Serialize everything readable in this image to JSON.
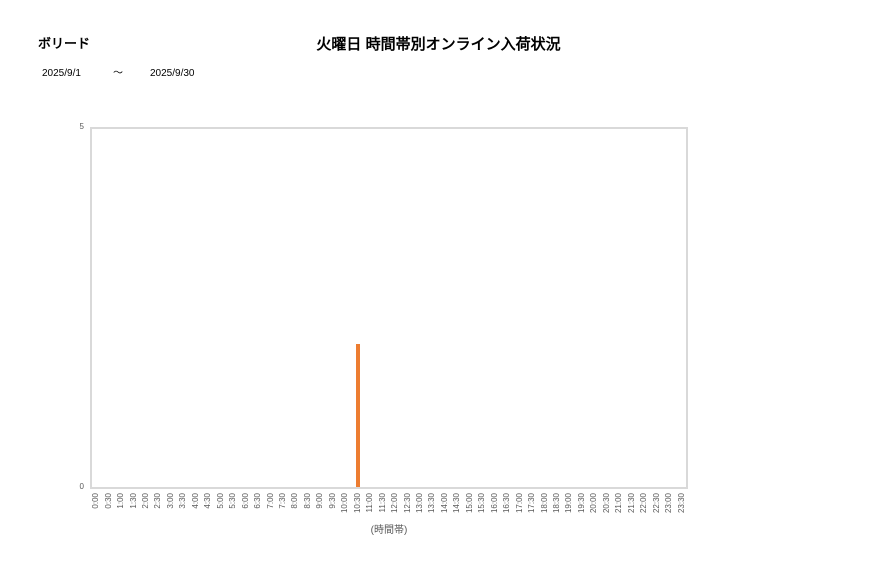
{
  "header": {
    "product_label": "ボリード",
    "title": "火曜日 時間帯別オンライン入荷状況",
    "date_from": "2025/9/1",
    "date_separator": "～",
    "date_to": "2025/9/30"
  },
  "chart_data": {
    "type": "bar",
    "title": "火曜日 時間帯別オンライン入荷状況",
    "xlabel": "(時間帯)",
    "ylabel": "",
    "ylim": [
      0,
      5
    ],
    "yticks": [
      "0",
      "5"
    ],
    "grid": false,
    "legend": false,
    "bar_color": "#ED7D31",
    "plot_border_color": "#D9D9D9",
    "categories": [
      "0:00",
      "0:30",
      "1:00",
      "1:30",
      "2:00",
      "2:30",
      "3:00",
      "3:30",
      "4:00",
      "4:30",
      "5:00",
      "5:30",
      "6:00",
      "6:30",
      "7:00",
      "7:30",
      "8:00",
      "8:30",
      "9:00",
      "9:30",
      "10:00",
      "10:30",
      "11:00",
      "11:30",
      "12:00",
      "12:30",
      "13:00",
      "13:30",
      "14:00",
      "14:30",
      "15:00",
      "15:30",
      "16:00",
      "16:30",
      "17:00",
      "17:30",
      "18:00",
      "18:30",
      "19:00",
      "19:30",
      "20:00",
      "20:30",
      "21:00",
      "21:30",
      "22:00",
      "22:30",
      "23:00",
      "23:30"
    ],
    "values": [
      0,
      0,
      0,
      0,
      0,
      0,
      0,
      0,
      0,
      0,
      0,
      0,
      0,
      0,
      0,
      0,
      0,
      0,
      0,
      0,
      0,
      2,
      0,
      0,
      0,
      0,
      0,
      0,
      0,
      0,
      0,
      0,
      0,
      0,
      0,
      0,
      0,
      0,
      0,
      0,
      0,
      0,
      0,
      0,
      0,
      0,
      0,
      0
    ]
  }
}
